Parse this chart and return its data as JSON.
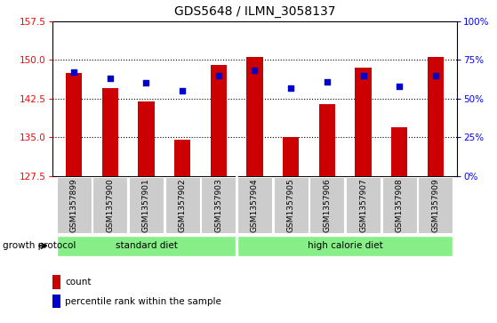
{
  "title": "GDS5648 / ILMN_3058137",
  "samples": [
    "GSM1357899",
    "GSM1357900",
    "GSM1357901",
    "GSM1357902",
    "GSM1357903",
    "GSM1357904",
    "GSM1357905",
    "GSM1357906",
    "GSM1357907",
    "GSM1357908",
    "GSM1357909"
  ],
  "bar_values": [
    147.5,
    144.5,
    142.0,
    134.5,
    149.0,
    150.5,
    135.0,
    141.5,
    148.5,
    137.0,
    150.5
  ],
  "dot_values_pct": [
    67,
    63,
    60,
    55,
    65,
    68,
    57,
    61,
    65,
    58,
    65
  ],
  "ylim_left": [
    127.5,
    157.5
  ],
  "ylim_right": [
    0,
    100
  ],
  "yticks_left": [
    127.5,
    135.0,
    142.5,
    150.0,
    157.5
  ],
  "yticks_right": [
    0,
    25,
    50,
    75,
    100
  ],
  "ytick_labels_right": [
    "0%",
    "25%",
    "50%",
    "75%",
    "100%"
  ],
  "grid_values": [
    135.0,
    142.5,
    150.0
  ],
  "bar_color": "#cc0000",
  "dot_color": "#0000cc",
  "bar_bottom": 127.5,
  "group1_label": "standard diet",
  "group2_label": "high calorie diet",
  "group1_indices": [
    0,
    1,
    2,
    3,
    4
  ],
  "group2_indices": [
    5,
    6,
    7,
    8,
    9,
    10
  ],
  "growth_protocol_label": "growth protocol",
  "legend_count_label": "count",
  "legend_pct_label": "percentile rank within the sample",
  "bg_color_plot": "#ffffff",
  "bg_color_xtick": "#cccccc",
  "bg_color_group": "#88ee88",
  "title_fontsize": 10,
  "tick_fontsize": 7.5,
  "label_fontsize": 7.5,
  "xtick_fontsize": 6.5
}
